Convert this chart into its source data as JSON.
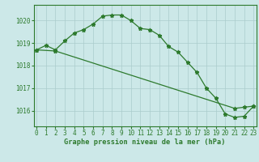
{
  "line1_x": [
    0,
    1,
    2,
    3,
    4,
    5,
    6,
    7,
    8,
    9,
    10,
    11,
    12,
    13,
    14,
    15,
    16,
    17,
    18,
    19,
    20,
    21,
    22,
    23
  ],
  "line1_y": [
    1018.7,
    1018.9,
    1018.7,
    1019.1,
    1019.45,
    1019.6,
    1019.85,
    1020.2,
    1020.25,
    1020.25,
    1020.0,
    1019.65,
    1019.6,
    1019.35,
    1018.85,
    1018.6,
    1018.15,
    1017.7,
    1017.0,
    1016.55,
    1015.85,
    1015.7,
    1015.75,
    1016.2
  ],
  "line2_x": [
    0,
    2,
    21,
    22,
    23
  ],
  "line2_y": [
    1018.7,
    1018.65,
    1016.1,
    1016.15,
    1016.2
  ],
  "line_color": "#2d7a2d",
  "bg_color": "#cce8e8",
  "grid_color": "#aacccc",
  "ylabel_ticks": [
    1016,
    1017,
    1018,
    1019,
    1020
  ],
  "xlabel_ticks": [
    0,
    1,
    2,
    3,
    4,
    5,
    6,
    7,
    8,
    9,
    10,
    11,
    12,
    13,
    14,
    15,
    16,
    17,
    18,
    19,
    20,
    21,
    22,
    23
  ],
  "xlabel": "Graphe pression niveau de la mer (hPa)",
  "ylim": [
    1015.3,
    1020.7
  ],
  "xlim": [
    -0.3,
    23.3
  ],
  "tick_fontsize": 5.5,
  "xlabel_fontsize": 6.2,
  "line_width": 0.9,
  "marker_size": 3.5
}
